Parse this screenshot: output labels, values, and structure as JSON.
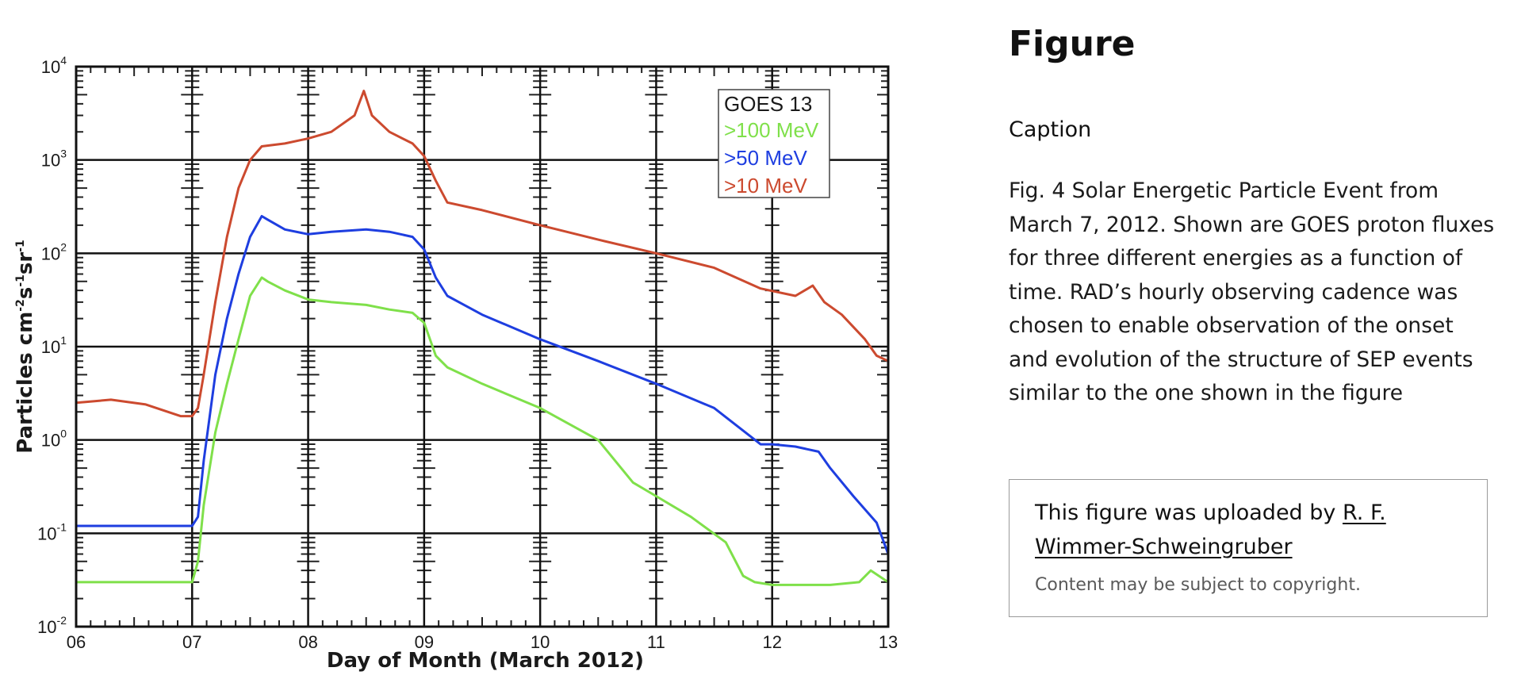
{
  "panel": {
    "title": "Figure",
    "caption_label": "Caption",
    "caption": "Fig. 4 Solar Energetic Particle Event from March 7, 2012. Shown are GOES proton fluxes for three different energies as a function of time. RAD’s hourly observing cadence was chosen to enable observation of the onset and evolution of the structure of SEP events similar to the one shown in the figure",
    "uploaded_prefix": "This figure was uploaded by ",
    "uploader": "R. F. Wimmer-Schweingruber",
    "copyright": "Content may be subject to copyright."
  },
  "chart_data": {
    "type": "line",
    "y_scale": "log",
    "xlabel": "Day of Month (March 2012)",
    "ylabel": "Particles cm-2s-1sr-1",
    "xlim": [
      6,
      13
    ],
    "ylim": [
      0.01,
      10000
    ],
    "x_ticks": [
      "06",
      "07",
      "08",
      "09",
      "10",
      "11",
      "12",
      "13"
    ],
    "y_ticks": [
      {
        "base": "10",
        "exp": "-2"
      },
      {
        "base": "10",
        "exp": "-1"
      },
      {
        "base": "10",
        "exp": "0"
      },
      {
        "base": "10",
        "exp": "1"
      },
      {
        "base": "10",
        "exp": "2"
      },
      {
        "base": "10",
        "exp": "3"
      },
      {
        "base": "10",
        "exp": "4"
      }
    ],
    "grid": true,
    "legend": {
      "title": "GOES 13",
      "placement": "top-right"
    },
    "series": [
      {
        "name": ">100 MeV",
        "color": "#7fe04a",
        "points": [
          [
            6.0,
            0.03
          ],
          [
            6.5,
            0.03
          ],
          [
            7.0,
            0.03
          ],
          [
            7.05,
            0.05
          ],
          [
            7.1,
            0.2
          ],
          [
            7.2,
            1.2
          ],
          [
            7.3,
            4
          ],
          [
            7.4,
            12
          ],
          [
            7.5,
            35
          ],
          [
            7.6,
            55
          ],
          [
            7.65,
            50
          ],
          [
            7.8,
            40
          ],
          [
            8.0,
            32
          ],
          [
            8.2,
            30
          ],
          [
            8.5,
            28
          ],
          [
            8.7,
            25
          ],
          [
            8.9,
            23
          ],
          [
            9.0,
            18
          ],
          [
            9.1,
            8
          ],
          [
            9.2,
            6
          ],
          [
            9.5,
            4
          ],
          [
            10.0,
            2.2
          ],
          [
            10.5,
            1.0
          ],
          [
            10.8,
            0.35
          ],
          [
            11.0,
            0.25
          ],
          [
            11.3,
            0.15
          ],
          [
            11.6,
            0.08
          ],
          [
            11.75,
            0.035
          ],
          [
            11.85,
            0.03
          ],
          [
            12.0,
            0.028
          ],
          [
            12.5,
            0.028
          ],
          [
            12.75,
            0.03
          ],
          [
            12.85,
            0.04
          ],
          [
            13.0,
            0.03
          ]
        ]
      },
      {
        "name": ">50 MeV",
        "color": "#1e3ee0",
        "points": [
          [
            6.0,
            0.12
          ],
          [
            6.5,
            0.12
          ],
          [
            7.0,
            0.12
          ],
          [
            7.05,
            0.15
          ],
          [
            7.1,
            0.6
          ],
          [
            7.2,
            5
          ],
          [
            7.3,
            20
          ],
          [
            7.4,
            60
          ],
          [
            7.5,
            150
          ],
          [
            7.6,
            250
          ],
          [
            7.65,
            230
          ],
          [
            7.8,
            180
          ],
          [
            8.0,
            160
          ],
          [
            8.2,
            170
          ],
          [
            8.5,
            180
          ],
          [
            8.7,
            170
          ],
          [
            8.9,
            150
          ],
          [
            9.0,
            110
          ],
          [
            9.1,
            55
          ],
          [
            9.2,
            35
          ],
          [
            9.5,
            22
          ],
          [
            10.0,
            12
          ],
          [
            10.5,
            7
          ],
          [
            11.0,
            4
          ],
          [
            11.5,
            2.2
          ],
          [
            11.9,
            0.9
          ],
          [
            12.0,
            0.9
          ],
          [
            12.2,
            0.85
          ],
          [
            12.4,
            0.75
          ],
          [
            12.5,
            0.5
          ],
          [
            12.7,
            0.25
          ],
          [
            12.9,
            0.13
          ],
          [
            13.0,
            0.06
          ]
        ]
      },
      {
        "name": ">10 MeV",
        "color": "#cc4a2f",
        "points": [
          [
            6.0,
            2.5
          ],
          [
            6.3,
            2.7
          ],
          [
            6.6,
            2.4
          ],
          [
            6.9,
            1.8
          ],
          [
            7.0,
            1.8
          ],
          [
            7.05,
            2.2
          ],
          [
            7.1,
            5
          ],
          [
            7.2,
            30
          ],
          [
            7.3,
            150
          ],
          [
            7.4,
            500
          ],
          [
            7.5,
            1000
          ],
          [
            7.6,
            1400
          ],
          [
            7.8,
            1500
          ],
          [
            8.0,
            1700
          ],
          [
            8.2,
            2000
          ],
          [
            8.4,
            3000
          ],
          [
            8.48,
            5500
          ],
          [
            8.55,
            3000
          ],
          [
            8.7,
            2000
          ],
          [
            8.9,
            1500
          ],
          [
            9.0,
            1100
          ],
          [
            9.1,
            600
          ],
          [
            9.2,
            350
          ],
          [
            9.5,
            290
          ],
          [
            10.0,
            200
          ],
          [
            10.5,
            140
          ],
          [
            11.0,
            100
          ],
          [
            11.5,
            70
          ],
          [
            11.9,
            42
          ],
          [
            12.2,
            35
          ],
          [
            12.35,
            45
          ],
          [
            12.45,
            30
          ],
          [
            12.6,
            22
          ],
          [
            12.8,
            12
          ],
          [
            12.9,
            8
          ],
          [
            13.0,
            7
          ]
        ]
      }
    ]
  }
}
